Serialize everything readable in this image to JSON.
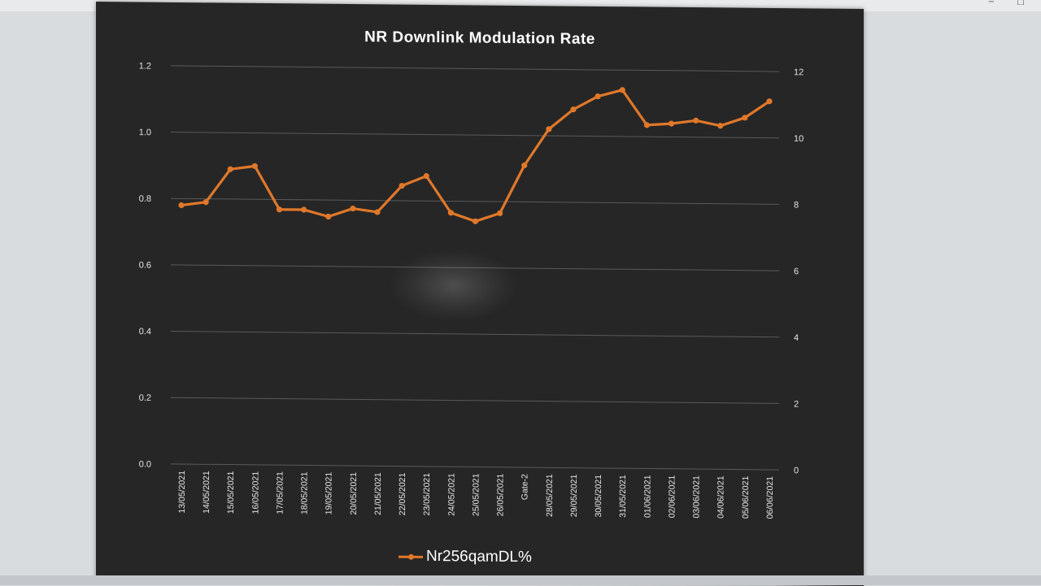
{
  "window": {
    "buttons": [
      {
        "icon": "minimize-icon",
        "glyph": "−"
      },
      {
        "icon": "maximize-icon",
        "glyph": "□"
      }
    ]
  },
  "chart_data": {
    "type": "line",
    "title": "NR Downlink  Modulation  Rate",
    "xlabel": "",
    "ylabel": "",
    "categories": [
      "13/05/2021",
      "14/05/2021",
      "15/05/2021",
      "16/05/2021",
      "17/05/2021",
      "18/05/2021",
      "19/05/2021",
      "20/05/2021",
      "21/05/2021",
      "22/05/2021",
      "23/05/2021",
      "24/05/2021",
      "25/05/2021",
      "26/05/2021",
      "Gate-2",
      "28/05/2021",
      "29/05/2021",
      "30/05/2021",
      "31/05/2021",
      "01/06/2021",
      "02/06/2021",
      "03/06/2021",
      "04/06/2021",
      "05/06/2021",
      "06/06/2021"
    ],
    "series": [
      {
        "name": "Nr256qamDL%",
        "color": "#e0782a",
        "axis": "right",
        "values": [
          7.8,
          7.9,
          8.9,
          9.0,
          7.7,
          7.7,
          7.5,
          7.75,
          7.65,
          8.45,
          8.75,
          7.65,
          7.4,
          7.65,
          9.1,
          10.2,
          10.8,
          11.2,
          11.4,
          10.35,
          10.4,
          10.5,
          10.35,
          10.6,
          11.1
        ]
      }
    ],
    "left_axis": {
      "ylim": [
        0,
        1.2
      ],
      "ticks": [
        "0.0",
        "0.2",
        "0.4",
        "0.6",
        "0.8",
        "1.0",
        "1.2"
      ]
    },
    "right_axis": {
      "ylim": [
        0,
        12
      ],
      "ticks": [
        "0",
        "2",
        "4",
        "6",
        "8",
        "10",
        "12"
      ]
    },
    "grid": true,
    "legend": "bottom"
  }
}
